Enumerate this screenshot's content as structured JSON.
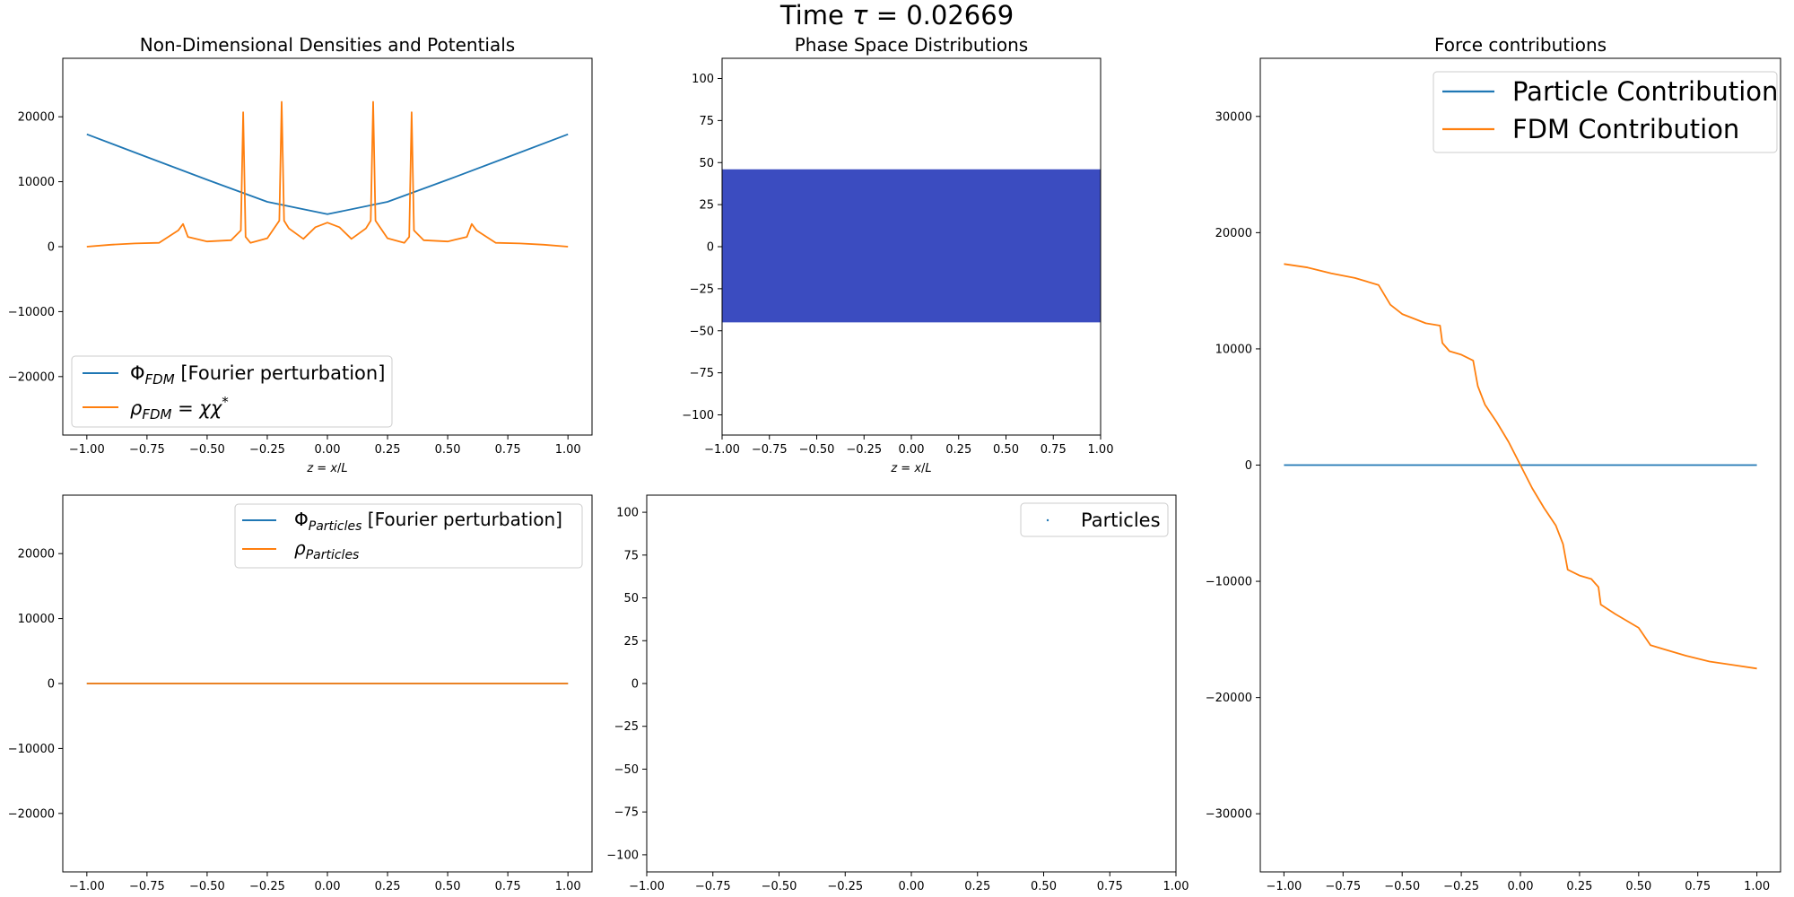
{
  "figure": {
    "suptitle_prefix": "Time ",
    "suptitle_symbol": "τ",
    "suptitle_suffix": " = 0.02669"
  },
  "colors": {
    "blue": "#1f77b4",
    "orange": "#ff7f0e",
    "phase_fill": "#3b4cc0"
  },
  "chart_data": [
    {
      "id": "densities_fdm",
      "type": "line",
      "title": "Non-Dimensional Densities and Potentials",
      "xlabel": "z = x/L",
      "ylabel": "",
      "xlim": [
        -1.1,
        1.1
      ],
      "ylim": [
        -29000,
        29000
      ],
      "xticks": [
        -1.0,
        -0.75,
        -0.5,
        -0.25,
        0.0,
        0.25,
        0.5,
        0.75,
        1.0
      ],
      "xtick_labels": [
        "−1.00",
        "−0.75",
        "−0.50",
        "−0.25",
        "0.00",
        "0.25",
        "0.50",
        "0.75",
        "1.00"
      ],
      "yticks": [
        -20000,
        -10000,
        0,
        10000,
        20000
      ],
      "ytick_labels": [
        "−20000",
        "−10000",
        "0",
        "10000",
        "20000"
      ],
      "legend": "lower-left",
      "series": [
        {
          "name": "Φ_FDM [Fourier perturbation]",
          "color": "#1f77b4",
          "x": [
            -1.0,
            -0.75,
            -0.5,
            -0.25,
            0.0,
            0.25,
            0.5,
            0.75,
            1.0
          ],
          "y": [
            17300,
            13800,
            10300,
            6900,
            5000,
            6900,
            10300,
            13800,
            17300
          ]
        },
        {
          "name": "ρ_FDM = χχ*",
          "color": "#ff7f0e",
          "x": [
            -1.0,
            -0.9,
            -0.8,
            -0.7,
            -0.62,
            -0.6,
            -0.58,
            -0.5,
            -0.4,
            -0.36,
            -0.35,
            -0.34,
            -0.32,
            -0.25,
            -0.2,
            -0.19,
            -0.18,
            -0.16,
            -0.1,
            -0.05,
            0.0,
            0.05,
            0.1,
            0.16,
            0.18,
            0.19,
            0.2,
            0.25,
            0.32,
            0.34,
            0.35,
            0.36,
            0.4,
            0.5,
            0.58,
            0.6,
            0.62,
            0.7,
            0.8,
            0.9,
            1.0
          ],
          "y": [
            0,
            300,
            500,
            600,
            2500,
            3500,
            1500,
            800,
            1000,
            2500,
            20700,
            1500,
            600,
            1300,
            4000,
            22300,
            4000,
            2800,
            1200,
            3000,
            3700,
            3000,
            1200,
            2800,
            4000,
            22300,
            4000,
            1300,
            600,
            1500,
            20700,
            2500,
            1000,
            800,
            1500,
            3500,
            2500,
            600,
            500,
            300,
            0
          ]
        }
      ]
    },
    {
      "id": "phase_space_fdm",
      "type": "heatmap",
      "title": "Phase Space Distributions",
      "xlabel": "z = x/L",
      "ylabel": "",
      "xlim": [
        -1.0,
        1.0
      ],
      "ylim": [
        -112,
        112
      ],
      "xticks": [
        -1.0,
        -0.75,
        -0.5,
        -0.25,
        0.0,
        0.25,
        0.5,
        0.75,
        1.0
      ],
      "xtick_labels": [
        "−1.00",
        "−0.75",
        "−0.50",
        "−0.25",
        "0.00",
        "0.25",
        "0.50",
        "0.75",
        "1.00"
      ],
      "yticks": [
        -100,
        -75,
        -50,
        -25,
        0,
        25,
        50,
        75,
        100
      ],
      "ytick_labels": [
        "−100",
        "−75",
        "−50",
        "−25",
        "0",
        "25",
        "50",
        "75",
        "100"
      ],
      "filled_region": {
        "x": [
          -1.0,
          1.0
        ],
        "y": [
          -45,
          46
        ],
        "color": "#3b4cc0"
      }
    },
    {
      "id": "forces",
      "type": "line",
      "title": "Force contributions",
      "xlabel": "",
      "ylabel": "",
      "xlim": [
        -1.1,
        1.1
      ],
      "ylim": [
        -35000,
        35000
      ],
      "xticks": [
        -1.0,
        -0.75,
        -0.5,
        -0.25,
        0.0,
        0.25,
        0.5,
        0.75,
        1.0
      ],
      "xtick_labels": [
        "−1.00",
        "−0.75",
        "−0.50",
        "−0.25",
        "0.00",
        "0.25",
        "0.50",
        "0.75",
        "1.00"
      ],
      "yticks": [
        -30000,
        -20000,
        -10000,
        0,
        10000,
        20000,
        30000
      ],
      "ytick_labels": [
        "−30000",
        "−20000",
        "−10000",
        "0",
        "10000",
        "20000",
        "30000"
      ],
      "legend": "top-right",
      "series": [
        {
          "name": "Particle Contribution",
          "color": "#1f77b4",
          "x": [
            -1.0,
            1.0
          ],
          "y": [
            0,
            0
          ]
        },
        {
          "name": "FDM Contribution",
          "color": "#ff7f0e",
          "x": [
            -1.0,
            -0.9,
            -0.8,
            -0.7,
            -0.6,
            -0.55,
            -0.5,
            -0.4,
            -0.34,
            -0.33,
            -0.3,
            -0.25,
            -0.2,
            -0.18,
            -0.15,
            -0.1,
            -0.05,
            0.0,
            0.05,
            0.1,
            0.15,
            0.18,
            0.2,
            0.25,
            0.3,
            0.33,
            0.34,
            0.4,
            0.5,
            0.55,
            0.6,
            0.7,
            0.8,
            0.9,
            1.0
          ],
          "y": [
            17300,
            17000,
            16500,
            16100,
            15500,
            13800,
            13000,
            12200,
            12000,
            10500,
            9800,
            9500,
            9000,
            6800,
            5200,
            3700,
            2000,
            0,
            -2000,
            -3700,
            -5200,
            -6800,
            -9000,
            -9500,
            -9800,
            -10500,
            -12000,
            -12800,
            -14000,
            -15500,
            -15800,
            -16400,
            -16900,
            -17200,
            -17500
          ]
        }
      ]
    },
    {
      "id": "densities_particles",
      "type": "line",
      "title": "",
      "xlabel": "",
      "ylabel": "",
      "xlim": [
        -1.1,
        1.1
      ],
      "ylim": [
        -29000,
        29000
      ],
      "xticks": [
        -1.0,
        -0.75,
        -0.5,
        -0.25,
        0.0,
        0.25,
        0.5,
        0.75,
        1.0
      ],
      "xtick_labels": [
        "−1.00",
        "−0.75",
        "−0.50",
        "−0.25",
        "0.00",
        "0.25",
        "0.50",
        "0.75",
        "1.00"
      ],
      "yticks": [
        -20000,
        -10000,
        0,
        10000,
        20000
      ],
      "ytick_labels": [
        "−20000",
        "−10000",
        "0",
        "10000",
        "20000"
      ],
      "legend": "top-right",
      "series": [
        {
          "name": "Φ_Particles [Fourier perturbation]",
          "color": "#1f77b4",
          "x": [
            -1.0,
            1.0
          ],
          "y": [
            0,
            0
          ]
        },
        {
          "name": "ρ_Particles",
          "color": "#ff7f0e",
          "x": [
            -1.0,
            1.0
          ],
          "y": [
            0,
            0
          ]
        }
      ]
    },
    {
      "id": "phase_space_particles",
      "type": "scatter",
      "title": "",
      "xlabel": "",
      "ylabel": "",
      "xlim": [
        -1.0,
        1.0
      ],
      "ylim": [
        -110,
        110
      ],
      "xticks": [
        -1.0,
        -0.75,
        -0.5,
        -0.25,
        0.0,
        0.25,
        0.5,
        0.75,
        1.0
      ],
      "xtick_labels": [
        "−1.00",
        "−0.75",
        "−0.50",
        "−0.25",
        "0.00",
        "0.25",
        "0.50",
        "0.75",
        "1.00"
      ],
      "yticks": [
        -100,
        -75,
        -50,
        -25,
        0,
        25,
        50,
        75,
        100
      ],
      "ytick_labels": [
        "−100",
        "−75",
        "−50",
        "−25",
        "0",
        "25",
        "50",
        "75",
        "100"
      ],
      "legend": "top-right",
      "series": [
        {
          "name": "Particles",
          "color": "#1f77b4",
          "x": [],
          "y": []
        }
      ]
    }
  ]
}
